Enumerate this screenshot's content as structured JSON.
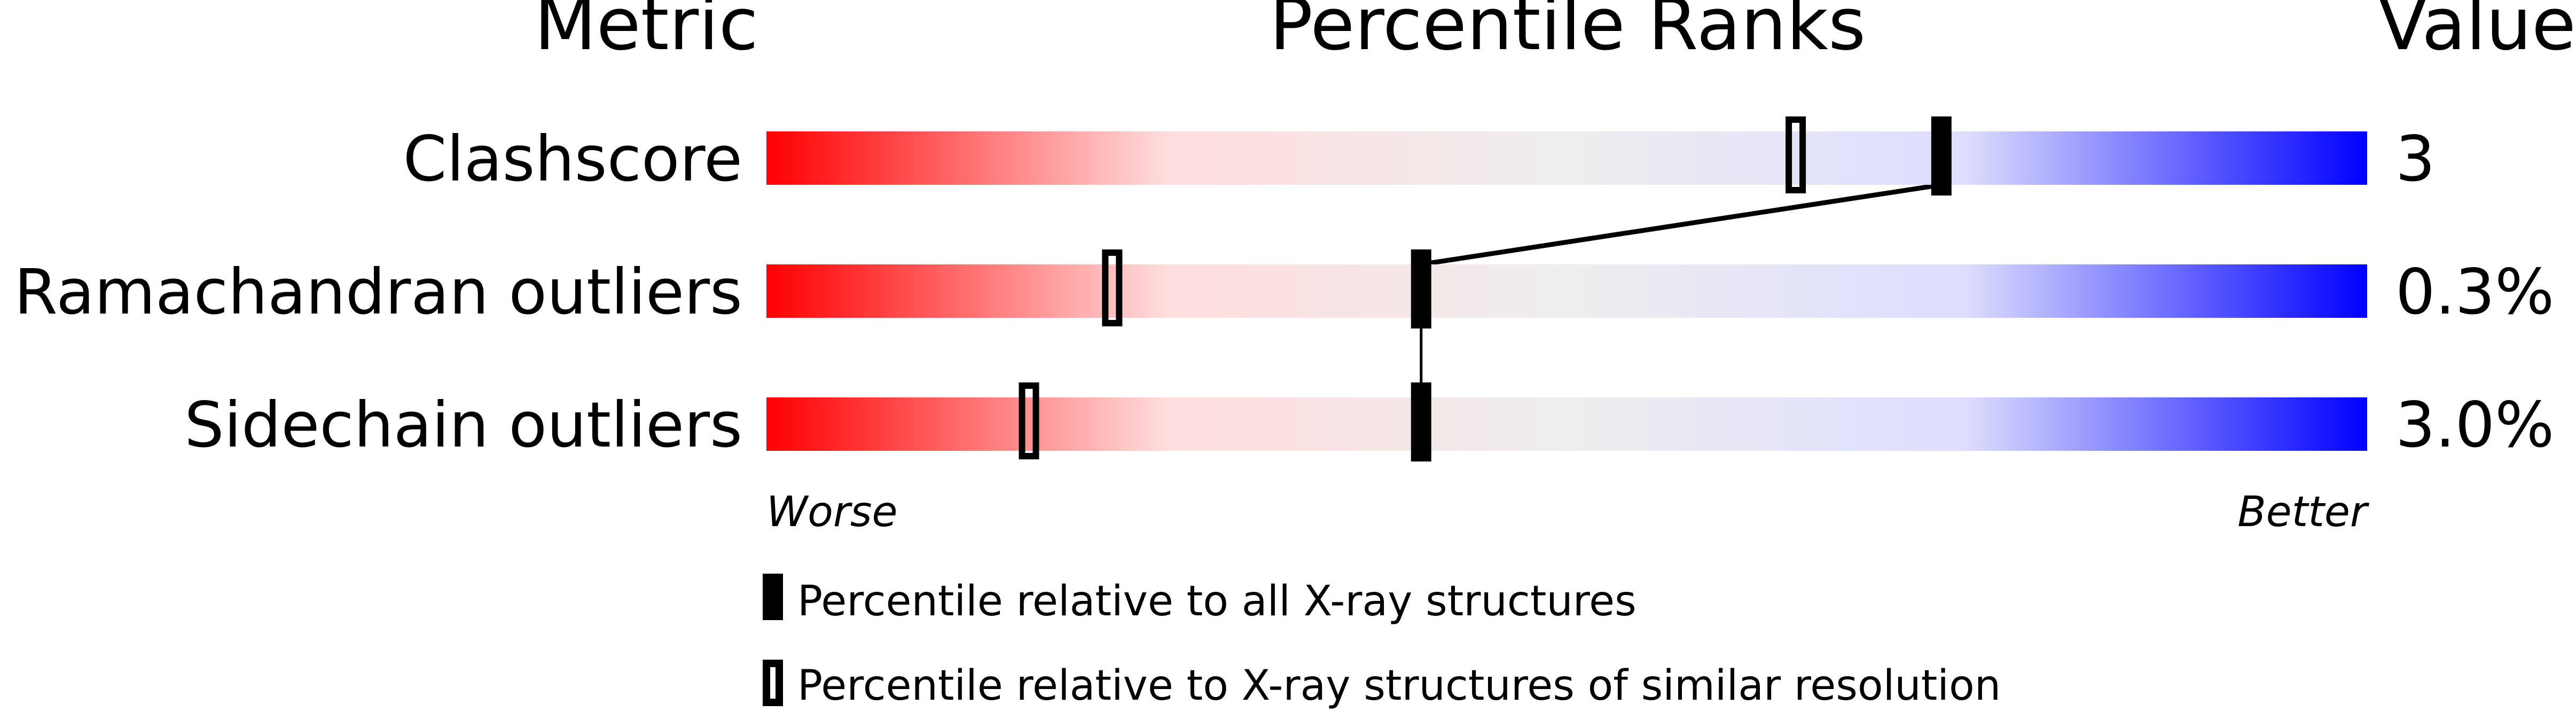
{
  "chart_data": {
    "type": "percentile-slider",
    "headers": {
      "metric": "Metric",
      "percentile": "Percentile Ranks",
      "value": "Value"
    },
    "xlim": [
      0,
      100
    ],
    "axis_labels": {
      "left": "Worse",
      "right": "Better"
    },
    "gradient_colors": [
      "#ff0000",
      "#ffdddd",
      "#eeeeee",
      "#ddddff",
      "#0000ff"
    ],
    "metrics": [
      {
        "name": "Clashscore",
        "value": "3",
        "percentile_all": 73.4,
        "percentile_similar": 64.3
      },
      {
        "name": "Ramachandran outliers",
        "value": "0.3%",
        "percentile_all": 40.9,
        "percentile_similar": 21.6
      },
      {
        "name": "Sidechain outliers",
        "value": "3.0%",
        "percentile_all": 40.9,
        "percentile_similar": 16.4
      }
    ],
    "legend": [
      {
        "marker": "filled",
        "label": "Percentile relative to all X-ray structures"
      },
      {
        "marker": "open",
        "label": "Percentile relative to X-ray structures of similar resolution"
      }
    ]
  }
}
